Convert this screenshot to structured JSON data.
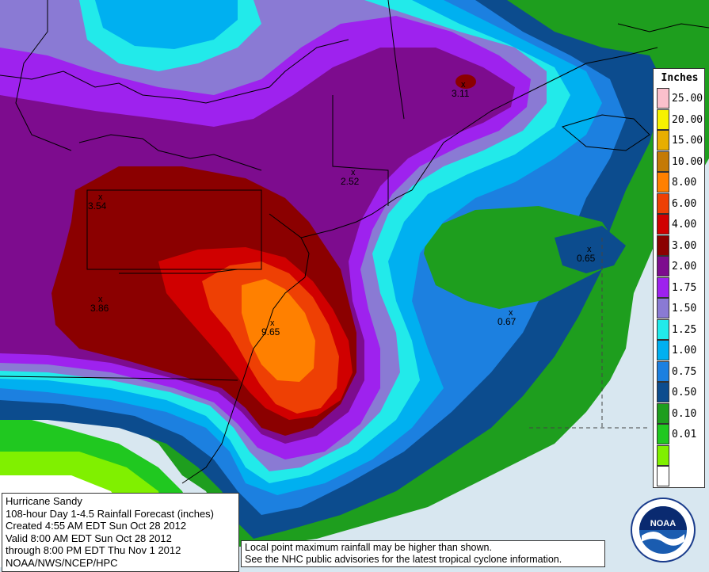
{
  "legend": {
    "title": "Inches",
    "items": [
      {
        "label": "25.00",
        "color": "#fbc0cc"
      },
      {
        "label": "20.00",
        "color": "#f6f200"
      },
      {
        "label": "15.00",
        "color": "#e8ae00"
      },
      {
        "label": "10.00",
        "color": "#c47a06"
      },
      {
        "label": "8.00",
        "color": "#ff8000"
      },
      {
        "label": "6.00",
        "color": "#ee4004"
      },
      {
        "label": "4.00",
        "color": "#d00000"
      },
      {
        "label": "3.00",
        "color": "#8b0000"
      },
      {
        "label": "2.00",
        "color": "#7d0c8e"
      },
      {
        "label": "1.75",
        "color": "#9e22ee"
      },
      {
        "label": "1.50",
        "color": "#8a7ad4"
      },
      {
        "label": "1.25",
        "color": "#22eaea"
      },
      {
        "label": "1.00",
        "color": "#00b0f0"
      },
      {
        "label": "0.75",
        "color": "#1c80e0"
      },
      {
        "label": "0.50",
        "color": "#0c4c8e"
      },
      {
        "label": "0.10",
        "color": "#1e9e1e"
      },
      {
        "label": "0.01",
        "color": "#20c820"
      },
      {
        "label": "",
        "color": "#80f000"
      },
      {
        "label": "",
        "color": "#ffffff"
      }
    ]
  },
  "maxima": [
    {
      "value": "3.11",
      "label": "3.11"
    },
    {
      "value": "2.52",
      "label": "2.52"
    },
    {
      "value": "3.54",
      "label": "3.54"
    },
    {
      "value": "3.86",
      "label": "3.86"
    },
    {
      "value": "9.65",
      "label": "9.65"
    },
    {
      "value": "0.67",
      "label": "0.67"
    },
    {
      "value": "0.65",
      "label": "0.65"
    }
  ],
  "info": {
    "line1": "Hurricane Sandy",
    "line2": "108-hour Day 1-4.5 Rainfall Forecast (inches)",
    "line3": "Created 4:55 AM EDT Sun Oct 28 2012",
    "line4": "Valid 8:00 AM EDT Sun Oct 28 2012",
    "line5": "through 8:00 PM EDT Thu Nov 1 2012",
    "line6": "NOAA/NWS/NCEP/HPC"
  },
  "note": {
    "line1": "Local point maximum rainfall may be higher than shown.",
    "line2": "See the NHC public advisories for the latest tropical cyclone information."
  },
  "logo": {
    "text": "NOAA"
  }
}
